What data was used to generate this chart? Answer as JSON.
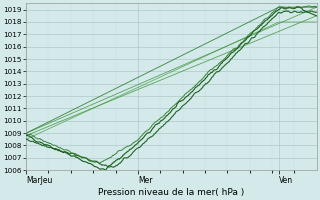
{
  "xlabel": "Pression niveau de la mer( hPa )",
  "ylim": [
    1006,
    1019.5
  ],
  "yticks": [
    1006,
    1007,
    1008,
    1009,
    1010,
    1011,
    1012,
    1013,
    1014,
    1015,
    1016,
    1017,
    1018,
    1019
  ],
  "xtick_labels": [
    "MarJeu",
    "Mer",
    "Ven"
  ],
  "xtick_positions": [
    0.0,
    0.385,
    0.87
  ],
  "bg_color": "#d4eaea",
  "grid_major_color": "#aec8c8",
  "grid_minor_color": "#c4dcdc",
  "line_dark": "#1a5e1a",
  "line_mid": "#2a782a",
  "line_light": "#4a9a4a",
  "figsize": [
    3.2,
    2.0
  ],
  "dpi": 100
}
